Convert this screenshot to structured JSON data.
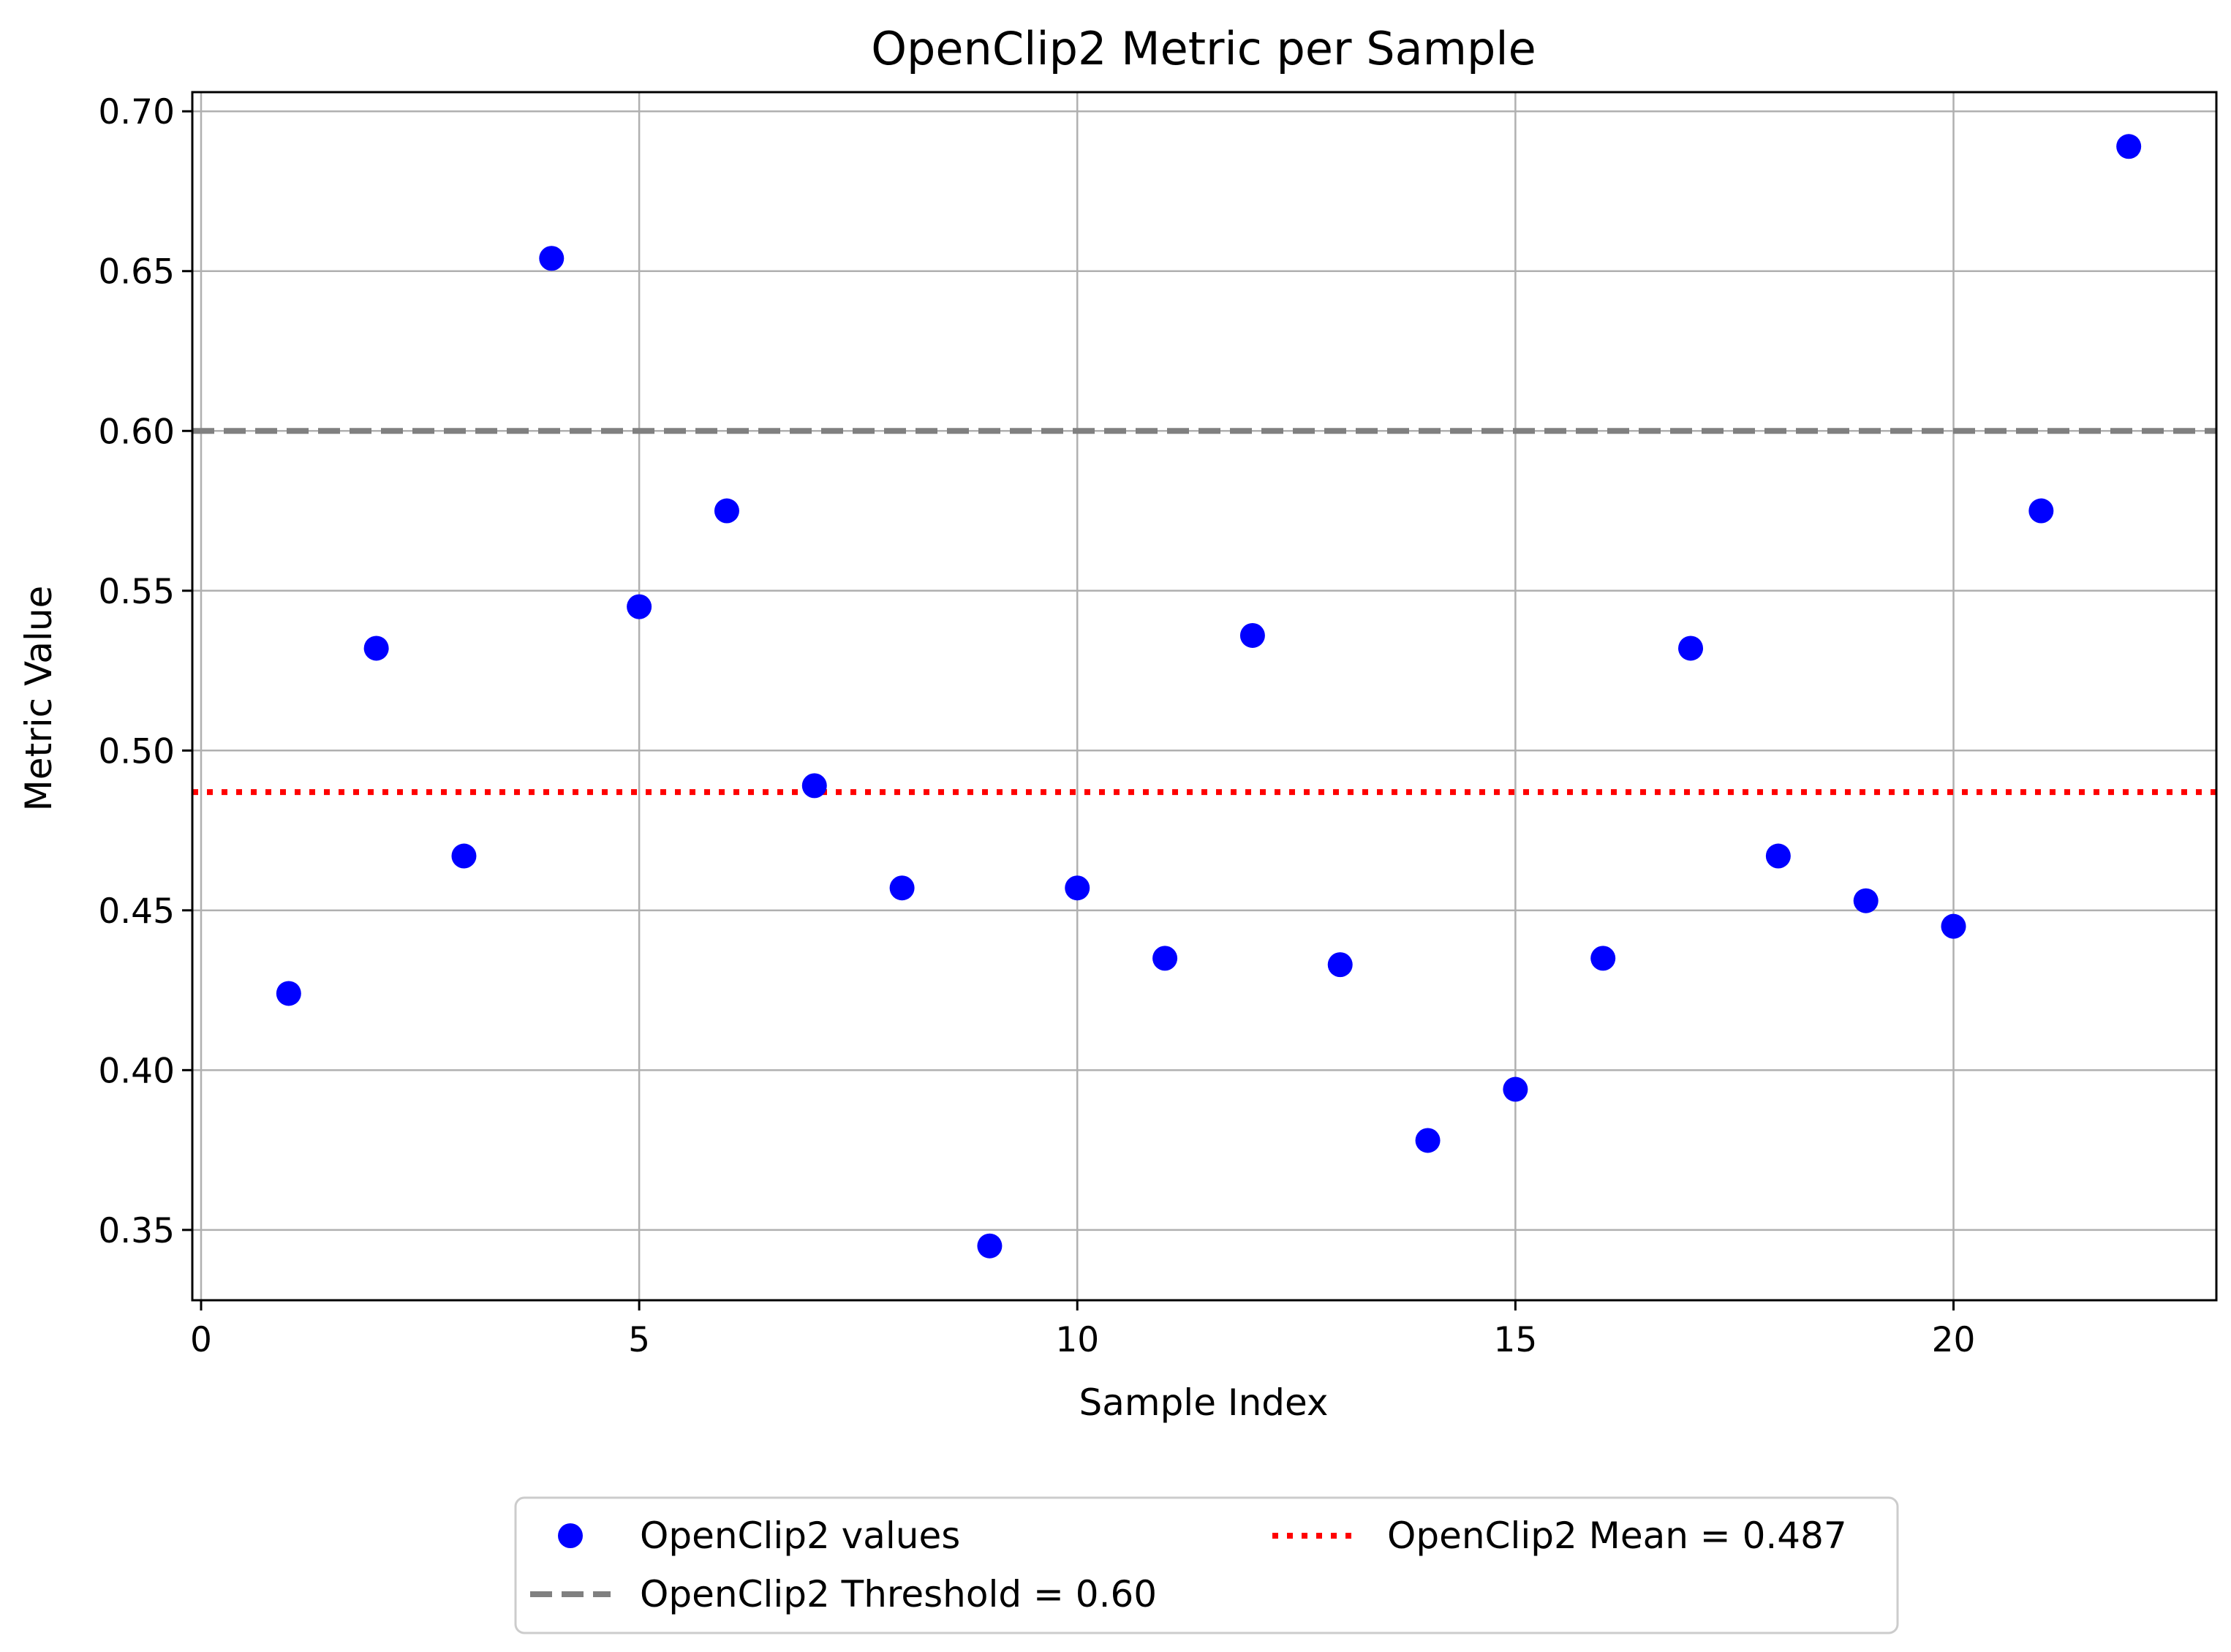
{
  "chart_data": {
    "type": "scatter",
    "title": "OpenClip2 Metric per Sample",
    "xlabel": "Sample Index",
    "ylabel": "Metric Value",
    "xlim": [
      -0.1,
      23.0
    ],
    "ylim": [
      0.328,
      0.706
    ],
    "xticks": [
      0,
      5,
      10,
      15,
      20
    ],
    "xtick_labels": [
      "0",
      "5",
      "10",
      "15",
      "20"
    ],
    "yticks": [
      0.35,
      0.4,
      0.45,
      0.5,
      0.55,
      0.6,
      0.65,
      0.7
    ],
    "ytick_labels": [
      "0.35",
      "0.40",
      "0.45",
      "0.50",
      "0.55",
      "0.60",
      "0.65",
      "0.70"
    ],
    "grid": true,
    "legend_position": "bottom-center",
    "series": [
      {
        "name": "OpenClip2 values",
        "color": "#0000ff",
        "marker": "circle",
        "x": [
          1,
          2,
          3,
          4,
          5,
          6,
          7,
          8,
          9,
          10,
          11,
          12,
          13,
          14,
          15,
          16,
          17,
          18,
          19,
          20,
          21,
          22
        ],
        "y": [
          0.424,
          0.532,
          0.467,
          0.654,
          0.545,
          0.575,
          0.489,
          0.457,
          0.345,
          0.457,
          0.435,
          0.536,
          0.433,
          0.378,
          0.394,
          0.435,
          0.532,
          0.467,
          0.453,
          0.445,
          0.575,
          0.689
        ]
      }
    ],
    "reference_lines": [
      {
        "name": "OpenClip2 Threshold = 0.60",
        "y": 0.6,
        "color": "#808080",
        "style": "dashed"
      },
      {
        "name": "OpenClip2 Mean = 0.487",
        "y": 0.487,
        "color": "#ff0000",
        "style": "dotted"
      }
    ],
    "legend": [
      {
        "label": "OpenClip2 values",
        "kind": "marker",
        "color": "#0000ff"
      },
      {
        "label": "OpenClip2 Mean = 0.487",
        "kind": "dotted",
        "color": "#ff0000"
      },
      {
        "label": "OpenClip2 Threshold = 0.60",
        "kind": "dashed",
        "color": "#808080"
      }
    ]
  }
}
